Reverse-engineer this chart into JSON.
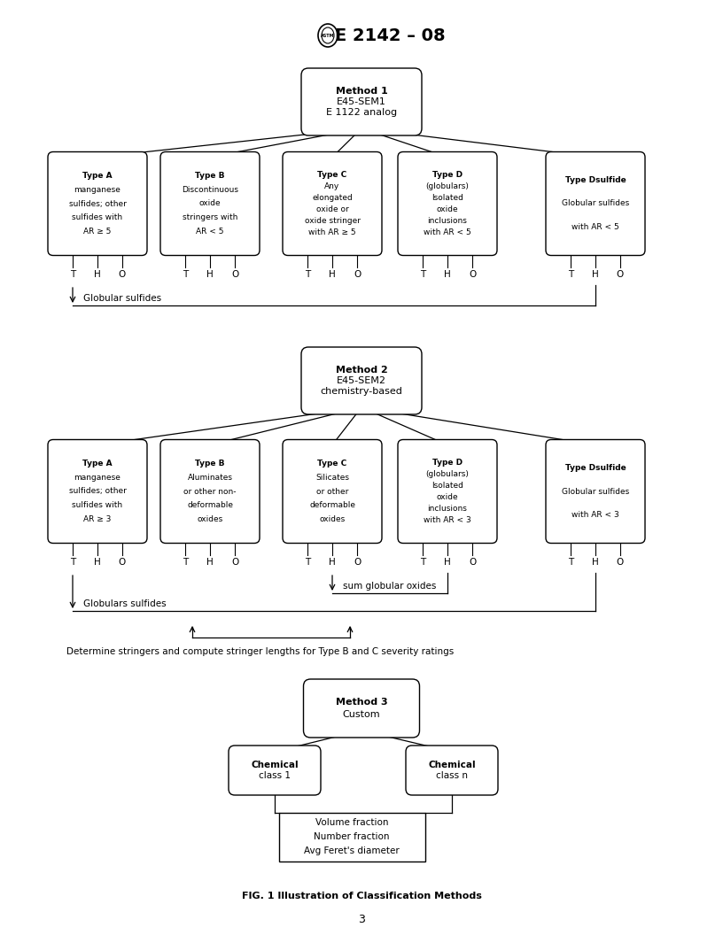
{
  "title": "E 2142 – 08",
  "fig_caption": "FIG. 1 Illustration of Classification Methods",
  "page_number": "3",
  "bg": "#ffffff",
  "method1_text": "Method 1\nE45-SEM1\nE 1122 analog",
  "method2_text": "Method 2\nE45-SEM2\nchemistry-based",
  "method3_text": "Method 3\nCustom",
  "type1_texts": [
    "Type A\nmanganese\nsulfides; other\nsulfides with\nAR ≥ 5",
    "Type B\nDiscontinuous\noxide\nstringers with\nAR < 5",
    "Type C\nAny\nelongated\noxide or\noxide stringer\nwith AR ≥ 5",
    "Type D\n(globulars)\nIsolated\noxide\ninclusions\nwith AR < 5",
    "Type Dsulfide\nGlobular sulfides\nwith AR < 5"
  ],
  "type2_texts": [
    "Type A\nmanganese\nsulfides; other\nsulfides with\nAR ≥ 3",
    "Type B\nAluminates\nor other non-\ndeformable\noxides",
    "Type C\nSilicates\nor other\ndeformable\noxides",
    "Type D\n(globulars)\nIsolated\noxide\ninclusions\nwith AR < 3",
    "Type Dsulfide\nGlobular sulfides\nwith AR < 3"
  ],
  "chem1_text": "Chemical\nclass 1",
  "chemn_text": "Chemical\nclass n",
  "vf_text": "Volume fraction\nNumber fraction\nAvg Feret's diameter",
  "glob1_text": "Globular sulfides",
  "glob2_text": "Globulars sulfides",
  "sum_text": "sum globular oxides",
  "stringer_text": "Determine stringers and compute stringer lengths for Type B and C severity ratings",
  "tho": [
    "T",
    "H",
    "O"
  ]
}
